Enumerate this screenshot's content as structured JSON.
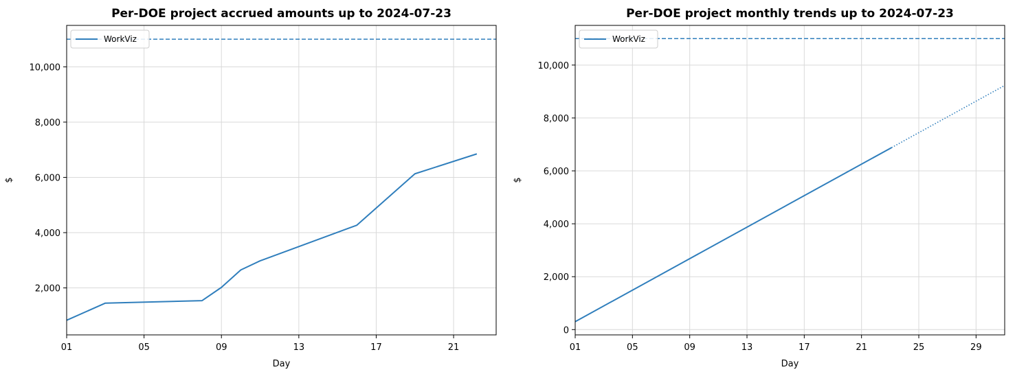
{
  "chart_data": [
    {
      "type": "line",
      "title": "Per-DOE project accrued amounts up to 2024-07-23",
      "xlabel": "Day",
      "ylabel": "$",
      "x_ticks": [
        "01",
        "05",
        "09",
        "13",
        "17",
        "21"
      ],
      "y_ticks": [
        "2,000",
        "4,000",
        "6,000",
        "8,000",
        "10,000"
      ],
      "xlim": [
        1,
        23.2
      ],
      "ylim": [
        300,
        11500
      ],
      "grid": true,
      "legend_position": "upper-left",
      "series": [
        {
          "name": "WorkViz",
          "color": "#2f7ebc",
          "style": "solid",
          "x": [
            1,
            3,
            8,
            9,
            10,
            11,
            16,
            19,
            22.2
          ],
          "y": [
            830,
            1450,
            1540,
            2020,
            2650,
            2980,
            4270,
            6130,
            6850
          ]
        }
      ],
      "hlines": [
        {
          "y": 11000,
          "color": "#2f7ebc",
          "style": "dashed"
        }
      ]
    },
    {
      "type": "line",
      "title": "Per-DOE project monthly trends up to 2024-07-23",
      "xlabel": "Day",
      "ylabel": "$",
      "x_ticks": [
        "01",
        "05",
        "09",
        "13",
        "17",
        "21",
        "25",
        "29"
      ],
      "y_ticks": [
        "0",
        "2,000",
        "4,000",
        "6,000",
        "8,000",
        "10,000"
      ],
      "xlim": [
        1,
        31
      ],
      "ylim": [
        -200,
        11500
      ],
      "grid": true,
      "legend_position": "upper-left",
      "series": [
        {
          "name": "WorkViz",
          "color": "#2f7ebc",
          "style": "solid",
          "x": [
            1,
            23.1
          ],
          "y": [
            300,
            6880
          ]
        },
        {
          "color": "#2f7ebc",
          "style": "dotted",
          "x": [
            23.1,
            31
          ],
          "y": [
            6880,
            9230
          ]
        }
      ],
      "hlines": [
        {
          "y": 11000,
          "color": "#2f7ebc",
          "style": "dashed"
        }
      ]
    }
  ]
}
